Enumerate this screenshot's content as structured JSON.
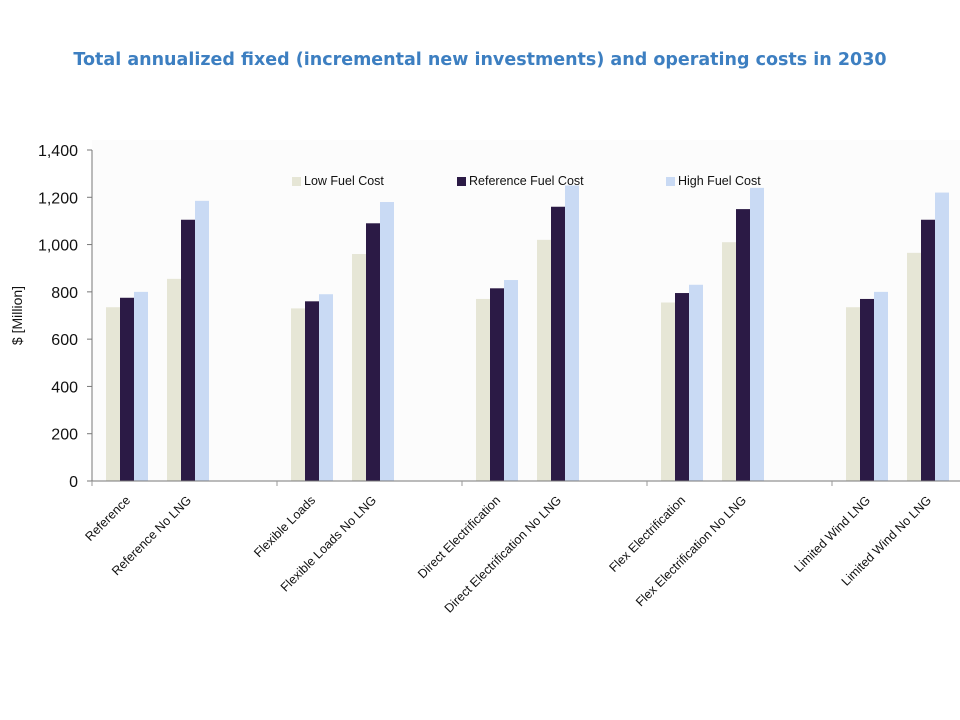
{
  "title": "Total annualized fixed (incremental new investments) and operating costs in 2030",
  "chart_data": {
    "type": "bar",
    "title": "Total annualized fixed (incremental new investments) and operating costs in 2030",
    "xlabel": "",
    "ylabel": "$ [Million]",
    "ylim": [
      0,
      1400
    ],
    "yticks": [
      0,
      200,
      400,
      600,
      800,
      1000,
      1200,
      1400
    ],
    "ytick_labels": [
      "0",
      "200",
      "400",
      "600",
      "800",
      "1,000",
      "1,200",
      "1,400"
    ],
    "grid": false,
    "legend_position": "top",
    "categories": [
      "Reference",
      "Reference No LNG",
      "Flexible Loads",
      "Flexible Loads No LNG",
      "Direct Electrification",
      "Direct Electrification No LNG",
      "Flex Electrification",
      "Flex Electrification No LNG",
      "Limited Wind LNG",
      "Limited Wind No LNG"
    ],
    "series": [
      {
        "name": "Low Fuel Cost",
        "color": "#e6e6d6",
        "values": [
          735,
          855,
          730,
          960,
          770,
          1020,
          755,
          1010,
          735,
          965
        ]
      },
      {
        "name": "Reference Fuel Cost",
        "color": "#2b1a45",
        "values": [
          775,
          1105,
          760,
          1090,
          815,
          1160,
          795,
          1150,
          770,
          1105
        ]
      },
      {
        "name": "High Fuel Cost",
        "color": "#c9daf4",
        "values": [
          800,
          1185,
          790,
          1180,
          850,
          1250,
          830,
          1240,
          800,
          1220
        ]
      }
    ]
  }
}
